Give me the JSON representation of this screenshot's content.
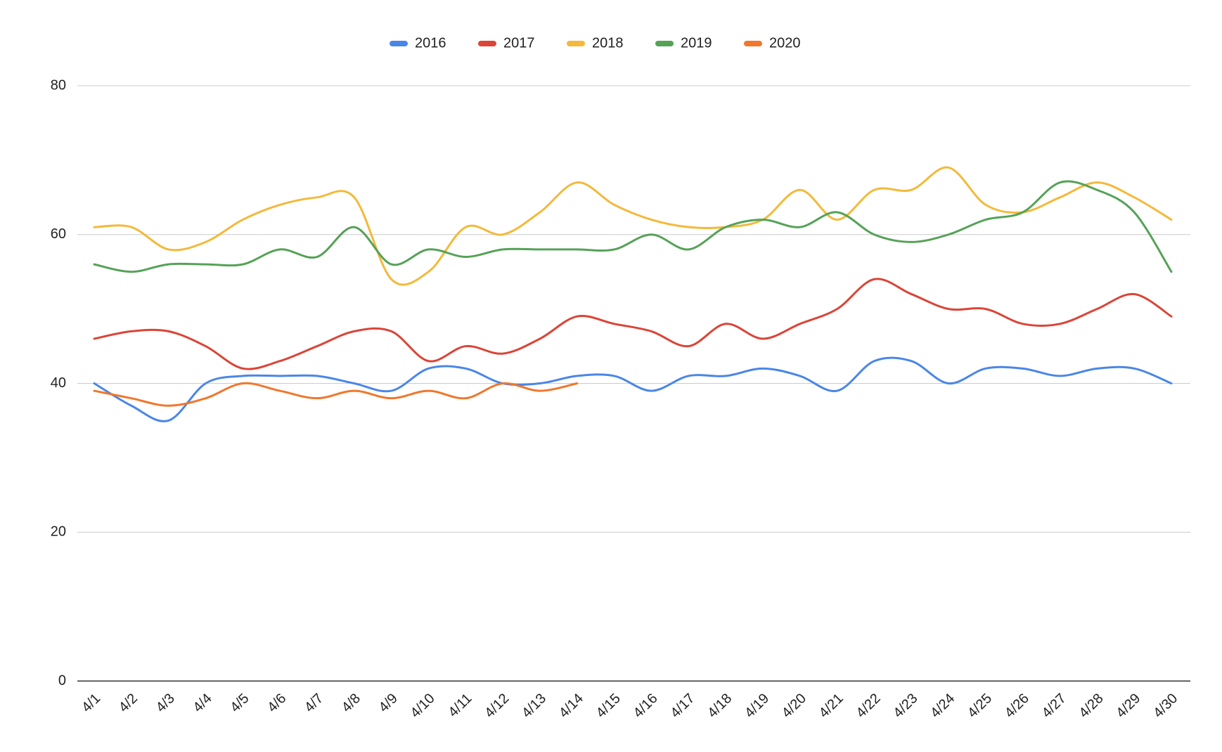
{
  "chart_data": {
    "type": "line",
    "categories": [
      "4/1",
      "4/2",
      "4/3",
      "4/4",
      "4/5",
      "4/6",
      "4/7",
      "4/8",
      "4/9",
      "4/10",
      "4/11",
      "4/12",
      "4/13",
      "4/14",
      "4/15",
      "4/16",
      "4/17",
      "4/18",
      "4/19",
      "4/20",
      "4/21",
      "4/22",
      "4/23",
      "4/24",
      "4/25",
      "4/26",
      "4/27",
      "4/28",
      "4/29",
      "4/30"
    ],
    "series": [
      {
        "name": "2016",
        "color": "#4a86e8",
        "values": [
          40,
          37,
          35,
          40,
          41,
          41,
          41,
          40,
          39,
          42,
          42,
          40,
          40,
          41,
          41,
          39,
          41,
          41,
          42,
          41,
          39,
          43,
          43,
          40,
          42,
          42,
          41,
          42,
          42,
          40
        ]
      },
      {
        "name": "2017",
        "color": "#db4437",
        "values": [
          46,
          47,
          47,
          45,
          42,
          43,
          45,
          47,
          47,
          43,
          45,
          44,
          46,
          49,
          48,
          47,
          45,
          48,
          46,
          48,
          50,
          54,
          52,
          50,
          50,
          48,
          48,
          50,
          52,
          49
        ]
      },
      {
        "name": "2018",
        "color": "#f4b93a",
        "values": [
          61,
          61,
          58,
          59,
          62,
          64,
          65,
          65,
          54,
          55,
          61,
          60,
          63,
          67,
          64,
          62,
          61,
          61,
          62,
          66,
          62,
          66,
          66,
          69,
          64,
          63,
          65,
          67,
          65,
          62
        ]
      },
      {
        "name": "2019",
        "color": "#55a257",
        "values": [
          56,
          55,
          56,
          56,
          56,
          58,
          57,
          61,
          56,
          58,
          57,
          58,
          58,
          58,
          58,
          60,
          58,
          61,
          62,
          61,
          63,
          60,
          59,
          60,
          62,
          63,
          67,
          66,
          63,
          55
        ]
      },
      {
        "name": "2020",
        "color": "#f0772c",
        "values": [
          39,
          38,
          37,
          38,
          40,
          39,
          38,
          39,
          38,
          39,
          38,
          40,
          39,
          40,
          null,
          null,
          null,
          null,
          null,
          null,
          null,
          null,
          null,
          null,
          null,
          null,
          null,
          null,
          null,
          null
        ]
      }
    ],
    "ylim": [
      0,
      80
    ],
    "yticks": [
      0,
      20,
      40,
      60,
      80
    ],
    "grid": true,
    "legend": "top",
    "smooth": true
  }
}
